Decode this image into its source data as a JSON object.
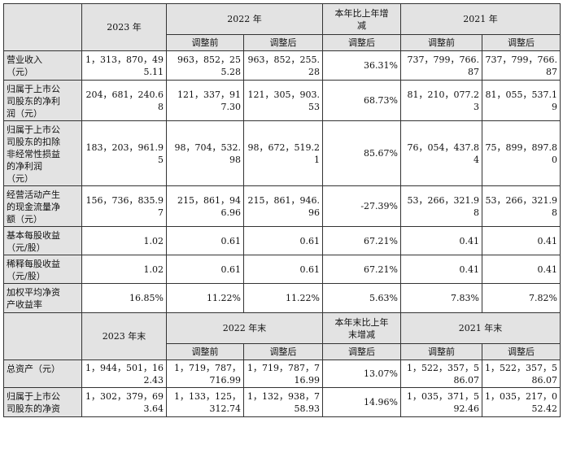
{
  "header1": {
    "y2023": "2023 年",
    "y2022": "2022 年",
    "change": "本年比上年增\n减",
    "y2021": "2021 年",
    "before": "调整前",
    "after": "调整后",
    "change_after": "调整后"
  },
  "rows1": [
    {
      "label": "营业收入\n（元）",
      "v2023": "1，313，870，495.11",
      "v2022b": "963，852，255.28",
      "v2022a": "963，852，255.28",
      "chg": "36.31%",
      "v2021b": "737，799，766.87",
      "v2021a": "737，799，766.87"
    },
    {
      "label": "归属于上市公\n司股东的净利\n润（元）",
      "v2023": "204，681，240.68",
      "v2022b": "121，337，917.30",
      "v2022a": "121，305，903.53",
      "chg": "68.73%",
      "v2021b": "81，210，077.23",
      "v2021a": "81，055，537.19"
    },
    {
      "label": "归属于上市公\n司股东的扣除\n非经常性损益\n的净利润\n（元）",
      "v2023": "183，203，961.95",
      "v2022b": "98，704，532.98",
      "v2022a": "98，672，519.21",
      "chg": "85.67%",
      "v2021b": "76，054，437.84",
      "v2021a": "75，899，897.80"
    },
    {
      "label": "经营活动产生\n的现金流量净\n额（元）",
      "v2023": "156，736，835.97",
      "v2022b": "215，861，946.96",
      "v2022a": "215，861，946.96",
      "chg": "-27.39%",
      "v2021b": "53，266，321.98",
      "v2021a": "53，266，321.98"
    },
    {
      "label": "基本每股收益\n（元/股）",
      "v2023": "1.02",
      "v2022b": "0.61",
      "v2022a": "0.61",
      "chg": "67.21%",
      "v2021b": "0.41",
      "v2021a": "0.41"
    },
    {
      "label": "稀释每股收益\n（元/股）",
      "v2023": "1.02",
      "v2022b": "0.61",
      "v2022a": "0.61",
      "chg": "67.21%",
      "v2021b": "0.41",
      "v2021a": "0.41"
    },
    {
      "label": "加权平均净资\n产收益率",
      "v2023": "16.85%",
      "v2022b": "11.22%",
      "v2022a": "11.22%",
      "chg": "5.63%",
      "v2021b": "7.83%",
      "v2021a": "7.82%"
    }
  ],
  "header2": {
    "y2023": "2023 年末",
    "y2022": "2022 年末",
    "change": "本年末比上年\n末增减",
    "y2021": "2021 年末",
    "before": "调整前",
    "after": "调整后",
    "change_after": "调整后"
  },
  "rows2": [
    {
      "label": "总资产（元）",
      "v2023": "1，944，501，162.43",
      "v2022b": "1，719，787，716.99",
      "v2022a": "1，719，787，716.99",
      "chg": "13.07%",
      "v2021b": "1，522，357，586.07",
      "v2021a": "1，522，357，586.07"
    },
    {
      "label": "归属于上市公\n司股东的净资",
      "v2023": "1，302，379，693.64",
      "v2022b": "1，133，125，312.74",
      "v2022a": "1，132，938，758.93",
      "chg": "14.96%",
      "v2021b": "1，035，371，592.46",
      "v2021a": "1，035，217，052.42"
    }
  ]
}
